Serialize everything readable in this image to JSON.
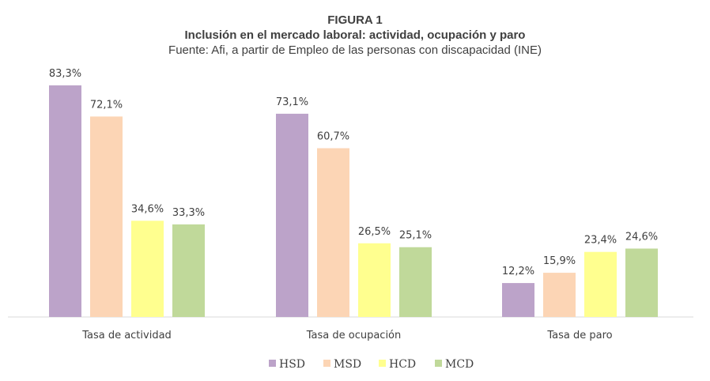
{
  "chart_data": {
    "type": "bar",
    "title": "FIGURA 1",
    "subtitle": "Inclusión en el mercado laboral: actividad, ocupación y paro",
    "source": "Fuente: Afi, a partir de Empleo de las personas con discapacidad (INE)",
    "xlabel": "",
    "ylabel": "",
    "ylim": [
      0,
      85
    ],
    "grid": false,
    "legend_position": "bottom",
    "categories": [
      "Tasa de actividad",
      "Tasa de ocupación",
      "Tasa de paro"
    ],
    "series": [
      {
        "name": "HSD",
        "color": "#BCA3C9",
        "values": [
          83.3,
          73.1,
          12.2
        ],
        "labels": [
          "83,3%",
          "73,1%",
          "12,2%"
        ]
      },
      {
        "name": "MSD",
        "color": "#FCD5B5",
        "values": [
          72.1,
          60.7,
          15.9
        ],
        "labels": [
          "72,1%",
          "60,7%",
          "15,9%"
        ]
      },
      {
        "name": "HCD",
        "color": "#FFFF8F",
        "values": [
          34.6,
          26.5,
          23.4
        ],
        "labels": [
          "34,6%",
          "26,5%",
          "23,4%"
        ]
      },
      {
        "name": "MCD",
        "color": "#C0D99A",
        "values": [
          33.3,
          25.1,
          24.6
        ],
        "labels": [
          "33,3%",
          "25,1%",
          "24,6%"
        ]
      }
    ]
  }
}
